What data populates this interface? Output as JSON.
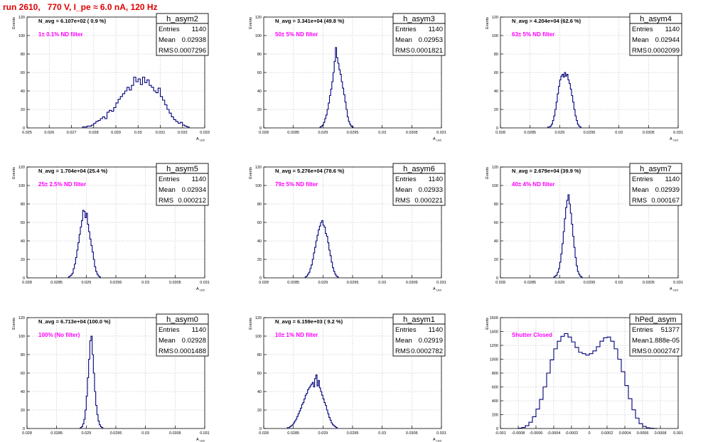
{
  "page_title": "run 2610,   770 V, I_pe ≈ 6.0 nA, 120 Hz",
  "colors": {
    "title": "#e00000",
    "histogram": "#00007a",
    "filter_label": "#ff00ff",
    "grid": "#c8c8c8"
  },
  "chart_data": [
    {
      "type": "histogram",
      "title": "h_asym2",
      "stats": {
        "entries_label": "Entries",
        "entries": "1140",
        "mean_label": "Mean",
        "mean": "0.02938",
        "rms_label": "RMS",
        "rms": "0.0007296"
      },
      "navg": "N_avg = 6.107e+02 ( 0.9 %)",
      "filter": "1± 0.1% ND filter",
      "xlabel": "A_LED",
      "ylabel": "Events",
      "xlim": [
        0.025,
        0.033
      ],
      "ylim": [
        0,
        120
      ],
      "xticks": [
        0.025,
        0.026,
        0.027,
        0.028,
        0.029,
        0.03,
        0.031,
        0.032,
        0.033
      ],
      "xtick_labels": [
        "0.025",
        "0.026",
        "0.027",
        "0.028",
        "0.029",
        "0.03",
        "0.031",
        "0.032",
        "0.033"
      ],
      "yticks": [
        0,
        20,
        40,
        60,
        80,
        100,
        120
      ],
      "ytick_labels": [
        "0",
        "20",
        "40",
        "60",
        "80",
        "100",
        "120"
      ],
      "bins": {
        "start": 0.0275,
        "width": 0.0001,
        "counts": [
          1,
          1,
          2,
          2,
          3,
          5,
          7,
          8,
          10,
          12,
          10,
          17,
          19,
          18,
          22,
          27,
          31,
          34,
          37,
          40,
          44,
          41,
          46,
          55,
          50,
          53,
          47,
          55,
          49,
          52,
          46,
          44,
          40,
          38,
          43,
          34,
          30,
          25,
          20,
          16,
          12,
          9,
          7,
          5,
          6,
          3,
          2,
          1
        ]
      }
    },
    {
      "type": "histogram",
      "title": "h_asym3",
      "stats": {
        "entries_label": "Entries",
        "entries": "1140",
        "mean_label": "Mean",
        "mean": "0.02953",
        "rms_label": "RMS",
        "rms": "0.0001821"
      },
      "navg": "N_avg = 3.341e+04 (49.8 %)",
      "filter": "50± 5% ND filter",
      "xlabel": "A_LED",
      "ylabel": "Events",
      "xlim": [
        0.028,
        0.031
      ],
      "ylim": [
        0,
        120
      ],
      "xticks": [
        0.028,
        0.0285,
        0.029,
        0.0295,
        0.03,
        0.0305,
        0.031
      ],
      "xtick_labels": [
        "0.028",
        "0.0285",
        "0.029",
        "0.0295",
        "0.03",
        "0.0305",
        "0.031"
      ],
      "yticks": [
        0,
        20,
        40,
        60,
        80,
        100,
        120
      ],
      "ytick_labels": [
        "0",
        "20",
        "40",
        "60",
        "80",
        "100",
        "120"
      ],
      "bins": {
        "start": 0.02895,
        "width": 2e-05,
        "counts": [
          1,
          2,
          3,
          6,
          10,
          14,
          20,
          27,
          35,
          42,
          50,
          60,
          72,
          87,
          76,
          70,
          63,
          58,
          50,
          43,
          36,
          28,
          20,
          12,
          7,
          4,
          2,
          1
        ]
      }
    },
    {
      "type": "histogram",
      "title": "h_asym4",
      "stats": {
        "entries_label": "Entries",
        "entries": "1140",
        "mean_label": "Mean",
        "mean": "0.02944",
        "rms_label": "RMS",
        "rms": "0.0002099"
      },
      "navg": "N_avg = 4.204e+04 (62.6 %)",
      "filter": "63± 5% ND filter",
      "xlabel": "A_LED",
      "ylabel": "Events",
      "xlim": [
        0.028,
        0.031
      ],
      "ylim": [
        0,
        120
      ],
      "xticks": [
        0.028,
        0.0285,
        0.029,
        0.0295,
        0.03,
        0.0305,
        0.031
      ],
      "xtick_labels": [
        "0.028",
        "0.0285",
        "0.029",
        "0.0295",
        "0.03",
        "0.0305",
        "0.031"
      ],
      "yticks": [
        0,
        20,
        40,
        60,
        80,
        100,
        120
      ],
      "ytick_labels": [
        "0",
        "20",
        "40",
        "60",
        "80",
        "100",
        "120"
      ],
      "bins": {
        "start": 0.0288,
        "width": 2e-05,
        "counts": [
          1,
          1,
          2,
          4,
          8,
          13,
          20,
          28,
          37,
          45,
          52,
          56,
          58,
          55,
          60,
          56,
          58,
          52,
          48,
          42,
          35,
          28,
          20,
          13,
          8,
          4,
          2,
          1
        ]
      }
    },
    {
      "type": "histogram",
      "title": "h_asym5",
      "stats": {
        "entries_label": "Entries",
        "entries": "1140",
        "mean_label": "Mean",
        "mean": "0.02934",
        "rms_label": "RMS",
        "rms": "0.000212"
      },
      "navg": "N_avg = 1.704e+04 (25.4 %)",
      "filter": "25± 2.5% ND filter",
      "xlabel": "A_LED",
      "ylabel": "Events",
      "xlim": [
        0.028,
        0.031
      ],
      "ylim": [
        0,
        120
      ],
      "xticks": [
        0.028,
        0.0285,
        0.029,
        0.0295,
        0.03,
        0.0305,
        0.031
      ],
      "xtick_labels": [
        "0.028",
        "0.0285",
        "0.029",
        "0.0295",
        "0.03",
        "0.0305",
        "0.031"
      ],
      "yticks": [
        0,
        20,
        40,
        60,
        80,
        100,
        120
      ],
      "ytick_labels": [
        "0",
        "20",
        "40",
        "60",
        "80",
        "100",
        "120"
      ],
      "bins": {
        "start": 0.0287,
        "width": 2e-05,
        "counts": [
          1,
          2,
          3,
          5,
          10,
          15,
          22,
          30,
          38,
          47,
          55,
          62,
          73,
          72,
          65,
          70,
          58,
          50,
          42,
          35,
          28,
          20,
          12,
          7,
          4,
          2,
          1
        ]
      }
    },
    {
      "type": "histogram",
      "title": "h_asym6",
      "stats": {
        "entries_label": "Entries",
        "entries": "1140",
        "mean_label": "Mean",
        "mean": "0.02933",
        "rms_label": "RMS",
        "rms": "0.000221"
      },
      "navg": "N_avg = 5.276e+04 (78.6 %)",
      "filter": "79± 5% ND filter",
      "xlabel": "A_LED",
      "ylabel": "Events",
      "xlim": [
        0.028,
        0.031
      ],
      "ylim": [
        0,
        120
      ],
      "xticks": [
        0.028,
        0.0285,
        0.029,
        0.0295,
        0.03,
        0.0305,
        0.031
      ],
      "xtick_labels": [
        "0.028",
        "0.0285",
        "0.029",
        "0.0295",
        "0.03",
        "0.0305",
        "0.031"
      ],
      "yticks": [
        0,
        20,
        40,
        60,
        80,
        100,
        120
      ],
      "ytick_labels": [
        "0",
        "20",
        "40",
        "60",
        "80",
        "100",
        "120"
      ],
      "bins": {
        "start": 0.0287,
        "width": 2e-05,
        "counts": [
          1,
          2,
          4,
          6,
          10,
          14,
          20,
          27,
          33,
          40,
          46,
          52,
          56,
          60,
          62,
          57,
          55,
          48,
          45,
          38,
          30,
          24,
          17,
          11,
          7,
          4,
          2,
          1
        ]
      }
    },
    {
      "type": "histogram",
      "title": "h_asym7",
      "stats": {
        "entries_label": "Entries",
        "entries": "1140",
        "mean_label": "Mean",
        "mean": "0.02939",
        "rms_label": "RMS",
        "rms": "0.000167"
      },
      "navg": "N_avg = 2.679e+04 (39.9 %)",
      "filter": "40± 4% ND filter",
      "xlabel": "A_LED",
      "ylabel": "Events",
      "xlim": [
        0.028,
        0.031
      ],
      "ylim": [
        0,
        120
      ],
      "xticks": [
        0.028,
        0.0285,
        0.029,
        0.0295,
        0.03,
        0.0305,
        0.031
      ],
      "xtick_labels": [
        "0.028",
        "0.0285",
        "0.029",
        "0.0295",
        "0.03",
        "0.0305",
        "0.031"
      ],
      "yticks": [
        0,
        20,
        40,
        60,
        80,
        100,
        120
      ],
      "ytick_labels": [
        "0",
        "20",
        "40",
        "60",
        "80",
        "100",
        "120"
      ],
      "bins": {
        "start": 0.0289,
        "width": 2e-05,
        "counts": [
          1,
          2,
          3,
          6,
          10,
          17,
          26,
          37,
          50,
          64,
          76,
          84,
          90,
          80,
          70,
          58,
          45,
          33,
          22,
          13,
          7,
          4,
          2,
          1
        ]
      }
    },
    {
      "type": "histogram",
      "title": "h_asym0",
      "stats": {
        "entries_label": "Entries",
        "entries": "1140",
        "mean_label": "Mean",
        "mean": "0.02928",
        "rms_label": "RMS",
        "rms": "0.0001488"
      },
      "navg": "N_avg = 6.713e+04 (100.0 %)",
      "filter": "100% (No filter)",
      "xlabel": "A_LED",
      "ylabel": "Events",
      "xlim": [
        0.028,
        0.031
      ],
      "ylim": [
        0,
        120
      ],
      "xticks": [
        0.028,
        0.0285,
        0.029,
        0.0295,
        0.03,
        0.0305,
        0.031
      ],
      "xtick_labels": [
        "0.028",
        "0.0285",
        "0.029",
        "0.0295",
        "0.03",
        "0.0305",
        "0.031"
      ],
      "yticks": [
        0,
        20,
        40,
        60,
        80,
        100,
        120
      ],
      "ytick_labels": [
        "0",
        "20",
        "40",
        "60",
        "80",
        "100",
        "120"
      ],
      "bins": {
        "start": 0.0289,
        "width": 2e-05,
        "counts": [
          1,
          2,
          5,
          10,
          20,
          35,
          55,
          75,
          95,
          100,
          80,
          60,
          40,
          25,
          15,
          8,
          4,
          2,
          1
        ]
      }
    },
    {
      "type": "histogram",
      "title": "h_asym1",
      "stats": {
        "entries_label": "Entries",
        "entries": "1140",
        "mean_label": "Mean",
        "mean": "0.02919",
        "rms_label": "RMS",
        "rms": "0.0002782"
      },
      "navg": "N_avg = 6.159e+03 ( 9.2 %)",
      "filter": "10± 1% ND filter",
      "xlabel": "A_LED",
      "ylabel": "Events",
      "xlim": [
        0.028,
        0.031
      ],
      "ylim": [
        0,
        120
      ],
      "xticks": [
        0.028,
        0.0285,
        0.029,
        0.0295,
        0.03,
        0.0305,
        0.031
      ],
      "xtick_labels": [
        "0.028",
        "0.0285",
        "0.029",
        "0.0295",
        "0.03",
        "0.0305",
        "0.031"
      ],
      "yticks": [
        0,
        20,
        40,
        60,
        80,
        100,
        120
      ],
      "ytick_labels": [
        "0",
        "20",
        "40",
        "60",
        "80",
        "100",
        "120"
      ],
      "bins": {
        "start": 0.0284,
        "width": 2e-05,
        "counts": [
          1,
          1,
          2,
          3,
          4,
          6,
          8,
          10,
          13,
          16,
          19,
          22,
          26,
          28,
          32,
          36,
          38,
          42,
          44,
          46,
          48,
          50,
          45,
          54,
          58,
          46,
          52,
          44,
          40,
          36,
          32,
          28,
          25,
          20,
          16,
          12,
          9,
          6,
          4,
          3,
          2,
          1
        ]
      }
    },
    {
      "type": "histogram",
      "title": "hPed_asym",
      "stats": {
        "entries_label": "Entries",
        "entries": "51377",
        "mean_label": "Mean",
        "mean": "1.888e-05",
        "rms_label": "RMS",
        "rms": "0.0002747"
      },
      "navg": "",
      "filter": "Shutter Closed",
      "xlabel": "",
      "ylabel": "Events",
      "xlim": [
        -0.001,
        0.001
      ],
      "ylim": [
        0,
        1600
      ],
      "xticks": [
        -0.001,
        -0.0008,
        -0.0006,
        -0.0004,
        -0.0002,
        0,
        0.0002,
        0.0004,
        0.0006,
        0.0008,
        0.001
      ],
      "xtick_labels": [
        "-0.001",
        "-0.0008",
        "-0.0006",
        "-0.0004",
        "-0.0002",
        "0",
        "0.0002",
        "0.0004",
        "0.0006",
        "0.0008",
        "0.001"
      ],
      "yticks": [
        0,
        200,
        400,
        600,
        800,
        1000,
        1200,
        1400,
        1600
      ],
      "ytick_labels": [
        "0",
        "200",
        "400",
        "600",
        "800",
        "1000",
        "1200",
        "1400",
        "1600"
      ],
      "bins": {
        "start": -0.0008,
        "width": 4e-05,
        "counts": [
          5,
          15,
          40,
          90,
          170,
          280,
          420,
          600,
          800,
          990,
          1150,
          1260,
          1330,
          1370,
          1320,
          1250,
          1170,
          1100,
          1080,
          1060,
          1080,
          1120,
          1180,
          1260,
          1310,
          1320,
          1260,
          1150,
          1000,
          820,
          620,
          430,
          270,
          150,
          70,
          30,
          10,
          4,
          1
        ]
      }
    }
  ]
}
